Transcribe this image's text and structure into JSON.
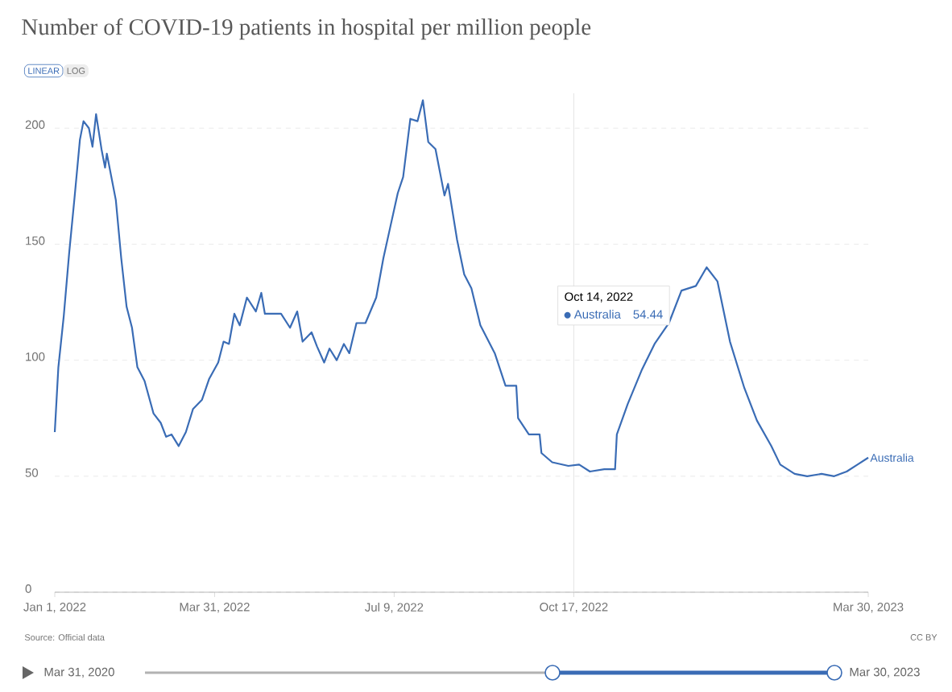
{
  "chart_data": {
    "type": "line",
    "title": "Number of COVID-19 patients in hospital per million people",
    "x": [
      "2022-01-01",
      "2022-01-03",
      "2022-01-06",
      "2022-01-09",
      "2022-01-12",
      "2022-01-15",
      "2022-01-17",
      "2022-01-20",
      "2022-01-22",
      "2022-01-24",
      "2022-01-27",
      "2022-01-29",
      "2022-01-30",
      "2022-02-04",
      "2022-02-07",
      "2022-02-10",
      "2022-02-13",
      "2022-02-16",
      "2022-02-20",
      "2022-02-25",
      "2022-03-01",
      "2022-03-04",
      "2022-03-07",
      "2022-03-11",
      "2022-03-15",
      "2022-03-19",
      "2022-03-24",
      "2022-03-28",
      "2022-04-02",
      "2022-04-05",
      "2022-04-08",
      "2022-04-11",
      "2022-04-14",
      "2022-04-18",
      "2022-04-23",
      "2022-04-26",
      "2022-04-28",
      "2022-05-03",
      "2022-05-07",
      "2022-05-12",
      "2022-05-16",
      "2022-05-19",
      "2022-05-24",
      "2022-05-27",
      "2022-05-31",
      "2022-06-03",
      "2022-06-07",
      "2022-06-11",
      "2022-06-14",
      "2022-06-18",
      "2022-06-23",
      "2022-06-29",
      "2022-07-03",
      "2022-07-07",
      "2022-07-11",
      "2022-07-14",
      "2022-07-18",
      "2022-07-22",
      "2022-07-25",
      "2022-07-28",
      "2022-08-01",
      "2022-08-06",
      "2022-08-08",
      "2022-08-13",
      "2022-08-17",
      "2022-08-21",
      "2022-08-26",
      "2022-09-03",
      "2022-09-09",
      "2022-09-15",
      "2022-09-16",
      "2022-09-22",
      "2022-09-28",
      "2022-09-29",
      "2022-10-05",
      "2022-10-14",
      "2022-10-20",
      "2022-10-26",
      "2022-11-03",
      "2022-11-09",
      "2022-11-10",
      "2022-11-16",
      "2022-11-24",
      "2022-12-01",
      "2022-12-09",
      "2022-12-16",
      "2022-12-24",
      "2022-12-30",
      "2023-01-05",
      "2023-01-12",
      "2023-01-20",
      "2023-01-27",
      "2023-02-04",
      "2023-02-09",
      "2023-02-17",
      "2023-02-24",
      "2023-03-04",
      "2023-03-11",
      "2023-03-18",
      "2023-03-24",
      "2023-03-30"
    ],
    "series": [
      {
        "name": "Australia",
        "color": "#3a6cb5",
        "values": [
          69,
          97,
          119,
          146,
          170,
          195,
          203,
          200,
          192,
          206,
          191,
          183,
          189,
          169,
          144,
          123,
          114,
          97,
          91,
          77,
          73,
          67,
          68,
          63,
          69,
          79,
          83,
          92,
          99,
          108,
          107,
          120,
          115,
          127,
          121,
          129,
          120,
          120,
          120,
          114,
          121,
          108,
          112,
          106,
          99,
          105,
          100,
          107,
          103,
          116,
          116,
          127,
          144,
          158,
          172,
          179,
          204,
          203,
          212,
          194,
          191,
          171,
          176,
          152,
          137,
          131,
          115,
          103,
          89,
          89,
          75,
          68,
          68,
          60,
          56,
          54.44,
          55,
          52,
          53,
          53,
          68,
          81,
          96,
          107,
          116,
          130,
          132,
          140,
          134,
          108,
          88,
          74,
          63,
          55,
          51,
          50,
          51,
          50,
          52,
          55,
          58
        ]
      }
    ],
    "xlim": [
      "2022-01-01",
      "2023-03-30"
    ],
    "xticks": [
      {
        "value": "2022-01-01",
        "label": "Jan 1, 2022"
      },
      {
        "value": "2022-03-31",
        "label": "Mar 31, 2022"
      },
      {
        "value": "2022-07-09",
        "label": "Jul 9, 2022"
      },
      {
        "value": "2022-10-17",
        "label": "Oct 17, 2022"
      },
      {
        "value": "2023-03-30",
        "label": "Mar 30, 2023"
      }
    ],
    "ylim": [
      0,
      215
    ],
    "yticks": [
      0,
      50,
      100,
      150,
      200
    ],
    "grid": "y",
    "ref_lines": [
      {
        "axis": "x",
        "value": "2022-10-17",
        "color": "#dddddd"
      }
    ],
    "annotations": [
      "Oct 14, 2022",
      "54.44",
      "LINEAR",
      "LOG",
      "Source: Official data",
      "CC BY",
      "Mar 31, 2020",
      "Mar 30, 2023"
    ]
  }
}
